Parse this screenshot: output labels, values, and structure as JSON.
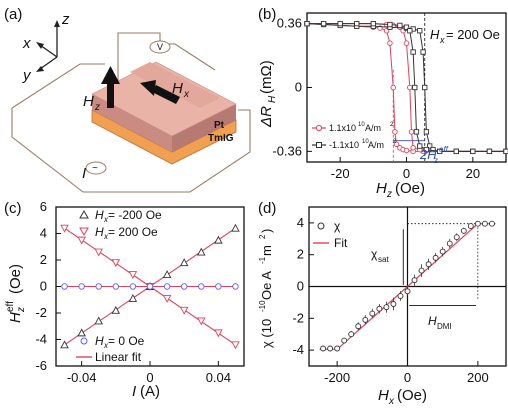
{
  "panels": {
    "a": "(a)",
    "b": "(b)",
    "c": "(c)",
    "d": "(d)"
  },
  "schematic": {
    "axes": {
      "x": "x",
      "y": "y",
      "z": "z"
    },
    "field_labels": {
      "hz": "H",
      "hz_sub": "z",
      "hx": "H",
      "hx_sub": "x"
    },
    "layer_labels": {
      "pt": "Pt",
      "tmig": "TmIG"
    },
    "current_label": "I",
    "voltmeter": "V",
    "ammeter": "~",
    "colors": {
      "cross_top": "#e9b3a8",
      "cross_side": "#c98b82",
      "tmig_layer": "#f0a050",
      "wire": "#9a7a66"
    }
  },
  "chart_data": [
    {
      "panel": "b",
      "type": "line",
      "xlabel": "H",
      "xlabel_sub": "z",
      "xlabel_unit": "(Oe)",
      "ylabel": "ΔR",
      "ylabel_sub": "H",
      "ylabel_unit": "(mΩ)",
      "xlim": [
        -30,
        30
      ],
      "ylim": [
        -0.42,
        0.42
      ],
      "xticks": [
        -20,
        0,
        20
      ],
      "yticks": [
        0.36,
        0,
        -0.36
      ],
      "xtick_labels": [
        "-20",
        "0",
        "20"
      ],
      "ytick_labels": [
        "0.36",
        "0",
        "-0.36"
      ],
      "annotation": "H",
      "annotation_sub": "x",
      "annotation_value": "= 200 Oe",
      "annotation2": "2H",
      "annotation2_sup": "eff",
      "annotation2_sub": "z",
      "series": [
        {
          "name": "1.1x10",
          "name_sup": "10",
          "name_unit": " A/m",
          "name_unit_sup": "2",
          "color": "#e0405a",
          "marker": "circle",
          "x": [
            -30,
            -25,
            -20,
            -15,
            -10,
            -8,
            -6,
            -5,
            -4,
            -3.5,
            -3,
            -2,
            -1,
            0,
            2,
            5,
            10,
            15,
            20,
            25,
            30
          ],
          "y": [
            0.36,
            0.355,
            0.35,
            0.345,
            0.34,
            0.335,
            0.32,
            0.25,
            0.0,
            -0.25,
            -0.32,
            -0.34,
            -0.35,
            -0.355,
            -0.36,
            -0.36,
            -0.36,
            -0.36,
            -0.36,
            -0.36,
            -0.36
          ],
          "y_return": [
            0.36,
            0.36,
            0.36,
            0.36,
            0.36,
            0.355,
            0.35,
            0.34,
            0.32,
            0.25,
            0.0,
            -0.25,
            -0.34,
            -0.35,
            -0.355,
            -0.36,
            -0.36,
            -0.36,
            -0.36,
            -0.36,
            -0.36
          ],
          "x_return": [
            -30,
            -25,
            -20,
            -15,
            -10,
            -6,
            -4,
            -2,
            -1,
            0,
            1,
            1.5,
            2,
            4,
            6,
            10,
            15,
            20,
            25,
            30,
            30
          ]
        },
        {
          "name": "-1.1x10",
          "name_sup": "10",
          "name_unit": " A/m",
          "name_unit_sup": "2",
          "color": "#333333",
          "marker": "square",
          "x": [
            -30,
            -25,
            -20,
            -15,
            -10,
            -5,
            0,
            2,
            4,
            5,
            5.5,
            6,
            7,
            8,
            10,
            15,
            20,
            25,
            30
          ],
          "y": [
            0.36,
            0.355,
            0.35,
            0.345,
            0.345,
            0.34,
            0.335,
            0.33,
            0.32,
            0.2,
            0.0,
            -0.25,
            -0.33,
            -0.35,
            -0.36,
            -0.36,
            -0.36,
            -0.36,
            -0.36
          ],
          "x_return": [
            -30,
            -25,
            -20,
            -15,
            -10,
            -5,
            -2,
            0,
            1,
            2,
            2.5,
            3,
            4,
            6,
            10,
            15,
            20,
            25,
            30
          ],
          "y_return": [
            0.36,
            0.36,
            0.36,
            0.36,
            0.36,
            0.355,
            0.35,
            0.34,
            0.32,
            0.2,
            0.0,
            -0.25,
            -0.33,
            -0.35,
            -0.36,
            -0.36,
            -0.36,
            -0.36,
            -0.36
          ]
        }
      ]
    },
    {
      "panel": "c",
      "type": "scatter",
      "xlabel": "I",
      "xlabel_unit": "(A)",
      "ylabel": "H",
      "ylabel_sub": "z",
      "ylabel_sup": "eff",
      "ylabel_unit": "(Oe)",
      "xlim": [
        -0.055,
        0.055
      ],
      "ylim": [
        -6,
        6
      ],
      "xticks": [
        -0.04,
        0,
        0.04
      ],
      "yticks": [
        -6,
        -4,
        -2,
        0,
        2,
        4,
        6
      ],
      "xtick_labels": [
        "-0.04",
        "0",
        "0.04"
      ],
      "ytick_labels": [
        "-6",
        "-4",
        "-2",
        "0",
        "2",
        "4",
        "6"
      ],
      "x": [
        -0.05,
        -0.04,
        -0.03,
        -0.02,
        -0.01,
        0,
        0.01,
        0.02,
        0.03,
        0.04,
        0.05
      ],
      "series": [
        {
          "name": "H",
          "name_sub": "x",
          "name_value": " = -200 Oe",
          "marker": "triangle-up",
          "color": "#333333",
          "y": [
            -4.4,
            -3.5,
            -2.6,
            -1.8,
            -0.9,
            0,
            0.9,
            1.8,
            2.6,
            3.5,
            4.4
          ]
        },
        {
          "name": "H",
          "name_sub": "x",
          "name_value": " = 200 Oe",
          "marker": "triangle-down",
          "color": "#e0405a",
          "y": [
            4.4,
            3.5,
            2.6,
            1.8,
            0.9,
            0,
            -0.9,
            -1.8,
            -2.6,
            -3.5,
            -4.4
          ]
        },
        {
          "name": "H",
          "name_sub": "x",
          "name_value": " = 0 Oe",
          "marker": "circle",
          "color": "#5a5aff",
          "y": [
            0,
            0,
            0,
            0,
            0,
            0,
            0,
            0,
            0,
            0,
            0
          ]
        }
      ],
      "fit_label": "Linear fit",
      "fit_color": "#e0405a"
    },
    {
      "panel": "d",
      "type": "scatter",
      "xlabel": "H",
      "xlabel_sub": "x",
      "xlabel_unit": "(Oe)",
      "ylabel": "χ (10",
      "ylabel_sup": "-10",
      "ylabel_rest": " Oe A",
      "ylabel_sup2": "-1",
      "ylabel_rest2": " m",
      "ylabel_sup3": "2",
      "ylabel_end": ")",
      "xlim": [
        -280,
        280
      ],
      "ylim": [
        -5,
        5
      ],
      "xticks": [
        -200,
        0,
        200
      ],
      "yticks": [
        -4,
        -2,
        0,
        2,
        4
      ],
      "xtick_labels": [
        "-200",
        "0",
        "200"
      ],
      "ytick_labels": [
        "-4",
        "-2",
        "0",
        "2",
        "4"
      ],
      "data_label": "χ",
      "fit_label": "Fit",
      "fit_color": "#e0405a",
      "annotations": {
        "chi_sat": "χ",
        "chi_sat_sub": "sat",
        "h_dmi": "H",
        "h_dmi_sub": "DMI"
      },
      "points": {
        "x": [
          -240,
          -220,
          -200,
          -180,
          -160,
          -140,
          -120,
          -100,
          -80,
          -60,
          -40,
          -20,
          0,
          20,
          40,
          60,
          80,
          100,
          120,
          140,
          160,
          180,
          200,
          220,
          240
        ],
        "y": [
          -3.9,
          -3.9,
          -3.9,
          -3.4,
          -3.0,
          -2.5,
          -2.1,
          -1.7,
          -1.4,
          -1.3,
          -1.1,
          -0.6,
          -0.3,
          0.4,
          1.0,
          1.4,
          1.8,
          2.2,
          2.7,
          3.1,
          3.5,
          3.8,
          3.95,
          3.95,
          3.95
        ],
        "err": [
          0.1,
          0.1,
          0.1,
          0.15,
          0.2,
          0.25,
          0.3,
          0.3,
          0.3,
          0.35,
          0.4,
          0.3,
          0.3,
          0.35,
          0.4,
          0.35,
          0.3,
          0.3,
          0.3,
          0.25,
          0.2,
          0.15,
          0.1,
          0.1,
          0.1
        ]
      },
      "fit": {
        "x": [
          -250,
          -200,
          200,
          250
        ],
        "y": [
          -3.95,
          -3.95,
          3.95,
          3.95
        ]
      }
    }
  ]
}
